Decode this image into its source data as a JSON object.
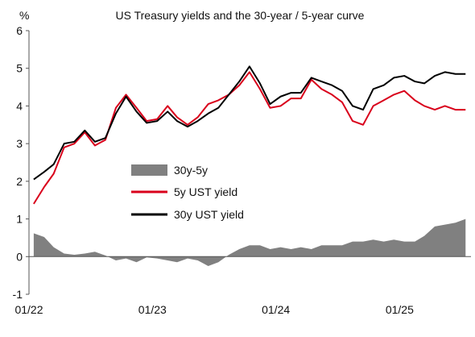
{
  "chart_data": {
    "type": "line",
    "title": "US Treasury yields and the 30-year / 5-year curve",
    "unit_label": "%",
    "ylim": [
      -1,
      6
    ],
    "y_ticks": [
      "6",
      "5",
      "4",
      "3",
      "2",
      "1",
      "0",
      "-1"
    ],
    "x_ticks": [
      "01/22",
      "01/23",
      "01/24",
      "01/25"
    ],
    "x_tick_dates": [
      "2022-01-01",
      "2023-01-01",
      "2024-01-01",
      "2025-01-01"
    ],
    "x_range": [
      "2022-01-01",
      "2025-07-31"
    ],
    "grid": false,
    "legend_position": "center-left",
    "colors": {
      "spread": "#808080",
      "five_year": "#d9001b",
      "thirty_year": "#000000",
      "axis": "#555555"
    },
    "dates": [
      "2022-01",
      "2022-02",
      "2022-03",
      "2022-04",
      "2022-05",
      "2022-06",
      "2022-07",
      "2022-08",
      "2022-09",
      "2022-10",
      "2022-11",
      "2022-12",
      "2023-01",
      "2023-02",
      "2023-03",
      "2023-04",
      "2023-05",
      "2023-06",
      "2023-07",
      "2023-08",
      "2023-09",
      "2023-10",
      "2023-11",
      "2023-12",
      "2024-01",
      "2024-02",
      "2024-03",
      "2024-04",
      "2024-05",
      "2024-06",
      "2024-07",
      "2024-08",
      "2024-09",
      "2024-10",
      "2024-11",
      "2024-12",
      "2025-01",
      "2025-02",
      "2025-03",
      "2025-04",
      "2025-05",
      "2025-06",
      "2025-07"
    ],
    "series": [
      {
        "name": "30y-5y",
        "kind": "area",
        "values": [
          0.62,
          0.52,
          0.25,
          0.08,
          0.05,
          0.08,
          0.13,
          0.03,
          -0.1,
          -0.05,
          -0.15,
          -0.02,
          -0.05,
          -0.1,
          -0.15,
          -0.05,
          -0.1,
          -0.25,
          -0.15,
          0.05,
          0.2,
          0.3,
          0.3,
          0.2,
          0.25,
          0.2,
          0.25,
          0.2,
          0.3,
          0.3,
          0.3,
          0.4,
          0.4,
          0.45,
          0.4,
          0.45,
          0.4,
          0.4,
          0.55,
          0.8,
          0.85,
          0.9,
          1.0
        ]
      },
      {
        "name": "5y UST yield",
        "kind": "line",
        "values": [
          1.4,
          1.85,
          2.2,
          2.9,
          3.0,
          3.3,
          2.95,
          3.1,
          3.95,
          4.3,
          3.95,
          3.6,
          3.65,
          4.0,
          3.7,
          3.5,
          3.7,
          4.05,
          4.15,
          4.3,
          4.55,
          4.9,
          4.45,
          3.95,
          4.0,
          4.2,
          4.2,
          4.7,
          4.45,
          4.3,
          4.1,
          3.6,
          3.5,
          4.0,
          4.15,
          4.3,
          4.4,
          4.15,
          4.0,
          3.9,
          4.0,
          3.9,
          3.9
        ]
      },
      {
        "name": "30y UST yield",
        "kind": "line",
        "values": [
          2.05,
          2.25,
          2.45,
          3.0,
          3.05,
          3.35,
          3.05,
          3.15,
          3.8,
          4.25,
          3.85,
          3.55,
          3.6,
          3.85,
          3.6,
          3.45,
          3.6,
          3.8,
          3.95,
          4.3,
          4.65,
          5.05,
          4.6,
          4.05,
          4.25,
          4.35,
          4.35,
          4.75,
          4.65,
          4.55,
          4.4,
          4.0,
          3.9,
          4.45,
          4.55,
          4.75,
          4.8,
          4.65,
          4.6,
          4.8,
          4.9,
          4.85,
          4.85
        ]
      }
    ]
  }
}
